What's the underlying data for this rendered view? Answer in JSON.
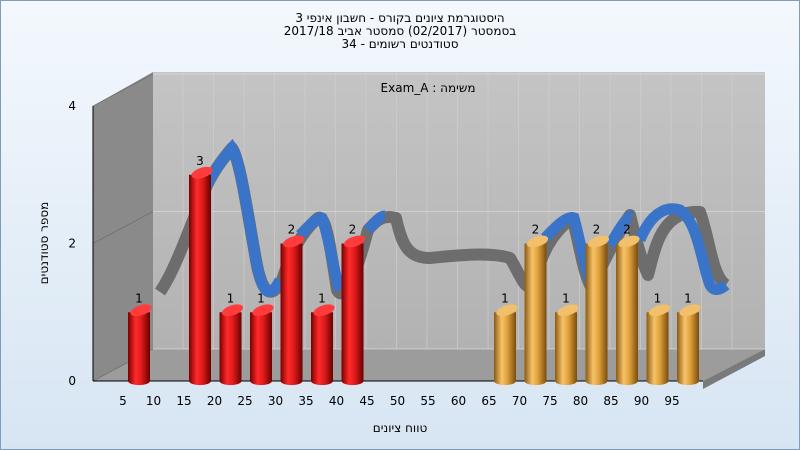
{
  "title_lines": [
    "היסטוגרמת ציונים בקורס - חשבון אינפי 3",
    "בסמסטר  (02/2017)  סמסטר אביב 2017/18",
    "סטודנטים רשומים - 34"
  ],
  "chart_data": {
    "type": "bar",
    "title": "היסטוגרמת ציונים בקורס - חשבון אינפי 3",
    "subtitle": [
      "בסמסטר  (02/2017)  סמסטר אביב 2017/18",
      "סטודנטים רשומים - 34"
    ],
    "xlabel": "טווח ציונים",
    "ylabel": "מספר סטודנטים",
    "annotation": "משימה : Exam_A",
    "categories": [
      "5",
      "10",
      "15",
      "20",
      "25",
      "30",
      "35",
      "40",
      "45",
      "50",
      "55",
      "60",
      "65",
      "70",
      "75",
      "80",
      "85",
      "90",
      "95"
    ],
    "x": [
      5,
      10,
      15,
      20,
      25,
      30,
      35,
      40,
      45,
      50,
      55,
      60,
      65,
      70,
      75,
      80,
      85,
      90,
      95
    ],
    "values": [
      1,
      0,
      3,
      1,
      1,
      2,
      1,
      2,
      0,
      0,
      0,
      0,
      1,
      2,
      1,
      2,
      2,
      1,
      1
    ],
    "bar_colors": [
      "red",
      "red",
      "red",
      "red",
      "red",
      "red",
      "red",
      "red",
      "none",
      "none",
      "none",
      "none",
      "gold",
      "gold",
      "gold",
      "gold",
      "gold",
      "gold",
      "gold"
    ],
    "data_labels": [
      "1",
      "",
      "3",
      "1",
      "1",
      "2",
      "1",
      "2",
      "",
      "",
      "",
      "",
      "1",
      "2",
      "1",
      "2",
      "2",
      "1",
      "1"
    ],
    "y_ticks": [
      "0",
      "2",
      "4"
    ],
    "ylim": [
      0,
      4
    ],
    "colors": {
      "red": "#e01c1c",
      "gold": "#e0a23c",
      "ribbon_front": "#3a74c8",
      "ribbon_back": "#6d6d6d",
      "wall": "#bdbdbd"
    },
    "grid": true,
    "three_d": true
  }
}
